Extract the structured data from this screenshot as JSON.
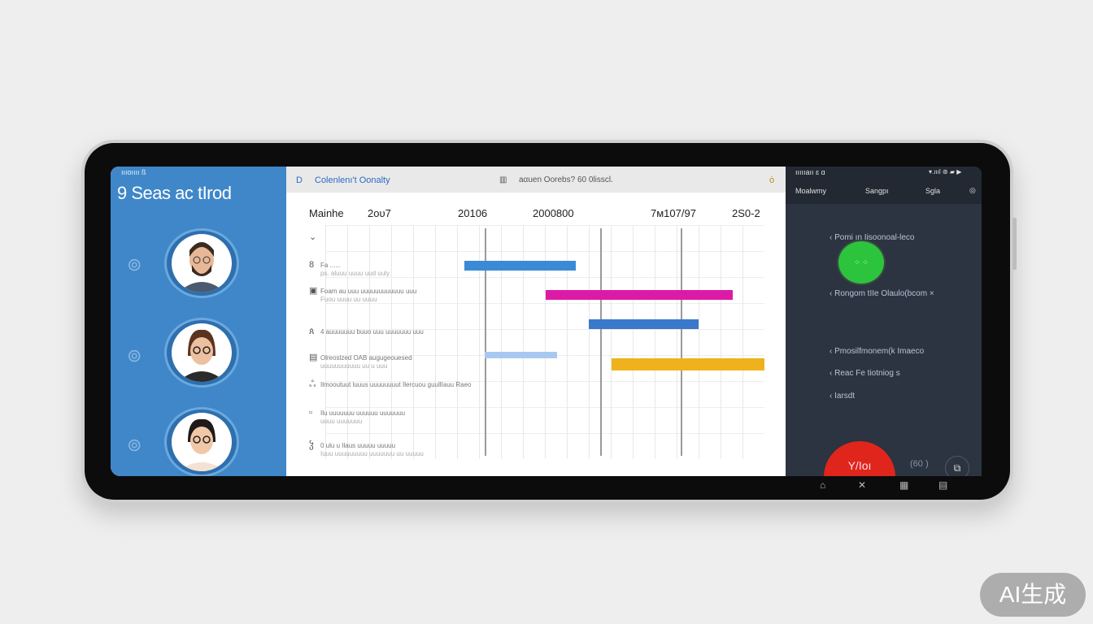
{
  "left_panel": {
    "status": "ıııoıııı ß",
    "title": "9 Seas ac tIrod",
    "color": "#3f87c9"
  },
  "header": {
    "icon": "D",
    "app_title": "Colenlenı't Oonalty",
    "search_text": "aαuen Oorebs? 60 0lisscl.",
    "menu_icon": "ȯ"
  },
  "columns": [
    "Mainhe",
    "2ᴏᴜ7",
    "20106",
    "2000800",
    "7ᴍ107/97",
    "2S0-2"
  ],
  "tasks": [
    {
      "icon": "⌄",
      "label": "",
      "sub": ""
    },
    {
      "icon": "8",
      "label": "Fa ......",
      "sub": "ps. aluuu uuuu uud uuly"
    },
    {
      "icon": "▣",
      "label": "Foam au uuu uuuuuuuuuuuu uuu",
      "sub": "Fuou uuuu uu uuuu"
    },
    {
      "icon": "ጰ",
      "label": "4 auuuuuuu buuo uuu uuuuuuu uuu",
      "sub": ""
    },
    {
      "icon": "▤",
      "label": "Olreoslzed OAB augugeouesed",
      "sub": "uuuuuuuuuuu uu u uuu"
    },
    {
      "icon": "ஃ",
      "label": "Ilmooutuut luuus uuuuuuuut Ilercuou guullIauu Raeo",
      "sub": ""
    },
    {
      "icon": "▫",
      "label": "Ilu uuuuuuu uuuuuu uuuuuuu",
      "sub": "uuuu uuuuuuu"
    },
    {
      "icon": "ჴ",
      "label": "0 ulu u Ilaus uuuuu uuuuu",
      "sub": "Iuuu uuuuuuuuu uuuuuuu uu uuuuu"
    }
  ],
  "chart_data": {
    "type": "gantt",
    "range": [
      0,
      100
    ],
    "bars": [
      {
        "row": 1,
        "start": 31.7,
        "end": 57,
        "color": "#3a8ad6"
      },
      {
        "row": 2,
        "start": 50.2,
        "end": 92.8,
        "color": "#dd1aa6"
      },
      {
        "row": 3,
        "start": 60,
        "end": 85,
        "color": "#3a78cc"
      },
      {
        "row": 4,
        "start": 36.3,
        "end": 52.8,
        "color": "#a9c8f0"
      },
      {
        "row": 4,
        "start": 65.2,
        "end": 100,
        "color": "#f0b21c"
      }
    ]
  },
  "right_panel": {
    "status": "ıııııaıı ɛ ɑ",
    "status_icons": "▾.ıııl ⊛ ▰ ▶",
    "tabs": [
      "Moalwmy",
      "Sangpı",
      "Sgla"
    ],
    "settings_icon": "◎",
    "items": [
      "Pomi ın Iisoonoal-leco",
      "Rongom tIIe Olaulo(bcom",
      "Pmosilfmonem(k Imaeco",
      "Reac Fe tiotniog s",
      "Iarsdt"
    ],
    "close": "×",
    "record_label": "Y/Ioı",
    "timer": "(60 )",
    "green": "#2cc43c",
    "red": "#e0261c"
  },
  "nav_icons": [
    "⌂",
    "✕",
    "▦",
    "▤"
  ],
  "watermark": "AI生成"
}
